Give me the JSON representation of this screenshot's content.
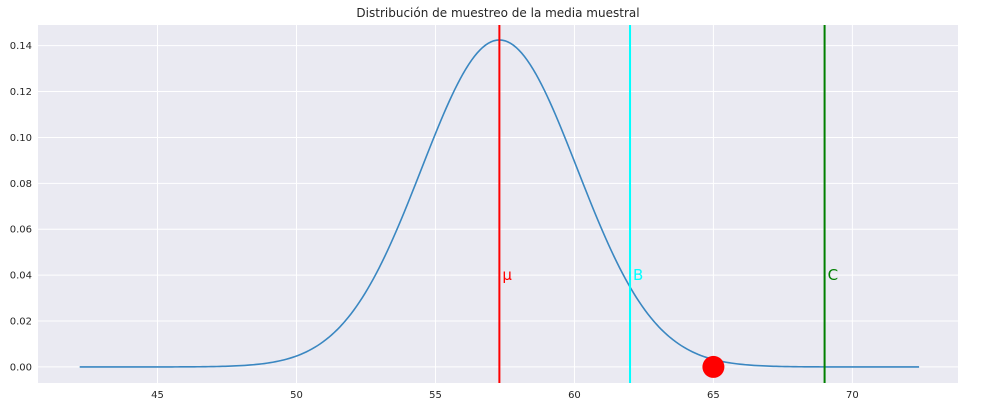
{
  "chart_data": {
    "type": "line",
    "title": "Distribución de muestreo de la media muestral",
    "xlabel": "",
    "ylabel": "",
    "xlim": [
      40.7,
      73.8
    ],
    "ylim": [
      -0.007,
      0.149
    ],
    "xticks": [
      45,
      50,
      55,
      60,
      65,
      70
    ],
    "yticks": [
      0.0,
      0.02,
      0.04,
      0.06,
      0.08,
      0.1,
      0.12,
      0.14
    ],
    "ytick_labels": [
      "0.00",
      "0.02",
      "0.04",
      "0.06",
      "0.08",
      "0.10",
      "0.12",
      "0.14"
    ],
    "grid": true,
    "colors": {
      "background": "#eaeaf2",
      "grid": "#ffffff",
      "curve": "#3a87c1"
    },
    "series": [
      {
        "kind": "normal-curve",
        "mean": 57.3,
        "std": 2.8,
        "x_range": [
          42.2,
          72.4
        ],
        "color": "#3a87c1"
      }
    ],
    "vertical_lines": [
      {
        "x": 57.3,
        "label": "μ",
        "color": "#ff0000"
      },
      {
        "x": 62.0,
        "label": "B",
        "color": "#00ffff"
      },
      {
        "x": 69.0,
        "label": "C",
        "color": "#008000"
      }
    ],
    "label_y": 0.04,
    "points": [
      {
        "x": 65.0,
        "y": 0.0,
        "color": "#ff0000"
      }
    ]
  }
}
